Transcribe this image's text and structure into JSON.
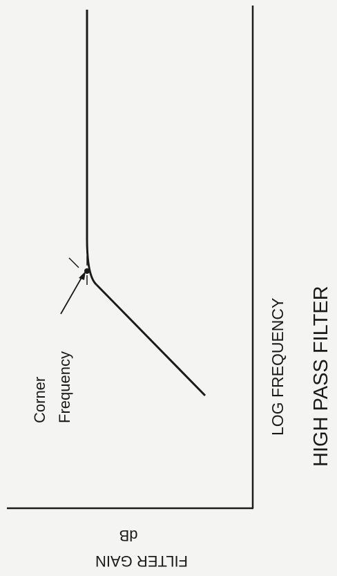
{
  "diagram": {
    "title": "HIGH PASS FILTER",
    "x_axis_label": "LOG FREQUENCY",
    "y_axis_unit": "dB",
    "y_axis_label": "FILTER GAIN",
    "annotation": {
      "line1": "Corner",
      "line2": "Frequency"
    }
  },
  "colors": {
    "ink": "#1a1a1a",
    "paper": "#f4f4f2"
  }
}
